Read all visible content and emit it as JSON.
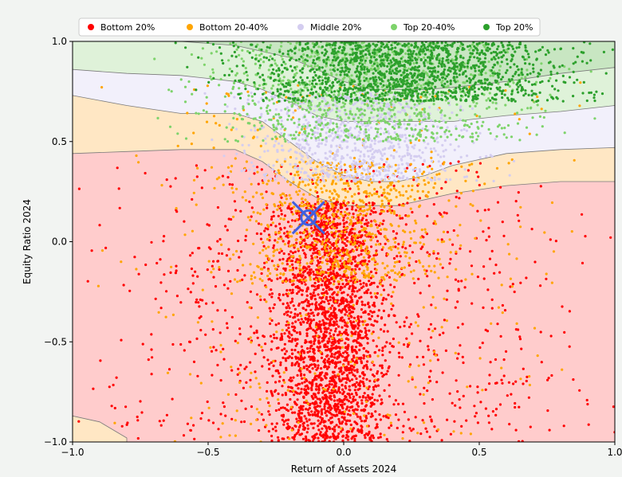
{
  "chart_data": {
    "type": "scatter",
    "title": "",
    "xlabel": "Return of Assets 2024",
    "ylabel": "Equity Ratio 2024",
    "xlim": [
      -1.0,
      1.0
    ],
    "ylim": [
      -1.0,
      1.0
    ],
    "x_ticks": [
      -1.0,
      -0.5,
      0.0,
      0.5,
      1.0
    ],
    "y_ticks": [
      -1.0,
      -0.5,
      0.0,
      0.5,
      1.0
    ],
    "x_tick_labels": [
      "−1.0",
      "−0.5",
      "0.0",
      "0.5",
      "1.0"
    ],
    "y_tick_labels": [
      "−1.0",
      "−0.5",
      "0.0",
      "0.5",
      "1.0"
    ],
    "grid": false,
    "legend_position": "top-center",
    "series": [
      {
        "name": "Bottom 20%",
        "color": "#ff0000",
        "region_color": "#ffcccc"
      },
      {
        "name": "Bottom 20-40%",
        "color": "#ffa500",
        "region_color": "#ffe7c4"
      },
      {
        "name": "Middle 20%",
        "color": "#d4cdf0",
        "region_color": "#f2f0fb"
      },
      {
        "name": "Top 20-40%",
        "color": "#7ed36b",
        "region_color": "#dff2d9"
      },
      {
        "name": "Top 20%",
        "color": "#2ca02c",
        "region_color": "#c8e6c2"
      }
    ],
    "decision_regions": {
      "x": [
        -1.0,
        -0.8,
        -0.6,
        -0.4,
        -0.3,
        -0.2,
        -0.1,
        0.0,
        0.1,
        0.2,
        0.3,
        0.4,
        0.6,
        0.8,
        1.0
      ],
      "boundary_bottom20_upper": [
        0.44,
        0.45,
        0.46,
        0.46,
        0.4,
        0.3,
        0.22,
        0.18,
        0.18,
        0.18,
        0.21,
        0.24,
        0.28,
        0.3,
        0.3
      ],
      "boundary_bottom2040_upper": [
        0.73,
        0.68,
        0.64,
        0.64,
        0.6,
        0.5,
        0.4,
        0.33,
        0.3,
        0.3,
        0.33,
        0.38,
        0.44,
        0.46,
        0.47
      ],
      "boundary_middle_upper": [
        0.86,
        0.84,
        0.83,
        0.8,
        0.76,
        0.7,
        0.63,
        0.6,
        0.6,
        0.6,
        0.6,
        0.6,
        0.63,
        0.65,
        0.68
      ],
      "boundary_top2040_upper": [
        1.0,
        1.0,
        1.0,
        0.98,
        0.95,
        0.92,
        0.86,
        0.8,
        0.76,
        0.76,
        0.76,
        0.77,
        0.8,
        0.84,
        0.87
      ],
      "bottom_left_region": {
        "label": "Bottom 20-40%",
        "x": [
          -1.0,
          -0.9,
          -0.8,
          -0.8
        ],
        "y": [
          -0.87,
          -0.9,
          -0.98,
          -1.0
        ]
      }
    },
    "marker": {
      "x": -0.13,
      "y": 0.12,
      "color": "#4060e0"
    },
    "clusters": [
      {
        "series": "Bottom 20%",
        "n": 2200,
        "x_center": -0.05,
        "x_spread": 0.1,
        "y_range": [
          -1.0,
          0.2
        ]
      },
      {
        "series": "Bottom 20%",
        "n": 900,
        "x_center": 0.0,
        "x_spread": 0.45,
        "y_range": [
          -1.0,
          0.4
        ]
      },
      {
        "series": "Bottom 20-40%",
        "n": 700,
        "x_center": 0.0,
        "x_spread": 0.18,
        "y_range": [
          -0.2,
          0.4
        ]
      },
      {
        "series": "Bottom 20-40%",
        "n": 400,
        "x_center": 0.0,
        "x_spread": 0.4,
        "y_range": [
          -1.0,
          0.8
        ]
      },
      {
        "series": "Middle 20%",
        "n": 900,
        "x_center": 0.05,
        "x_spread": 0.2,
        "y_range": [
          0.3,
          0.75
        ]
      },
      {
        "series": "Top 20-40%",
        "n": 1100,
        "x_center": 0.1,
        "x_spread": 0.3,
        "y_range": [
          0.5,
          1.0
        ]
      },
      {
        "series": "Top 20%",
        "n": 1500,
        "x_center": 0.25,
        "x_spread": 0.3,
        "y_range": [
          0.7,
          1.0
        ]
      }
    ]
  }
}
